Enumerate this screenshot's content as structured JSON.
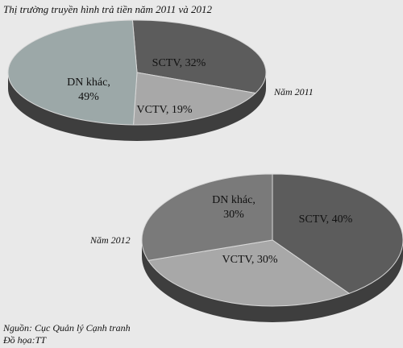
{
  "title": "Thị trường truyền hình trả tiền năm 2011 và 2012",
  "footer": {
    "source": "Nguồn: Cục Quản lý Cạnh tranh",
    "graphic": "Đồ họa:TT"
  },
  "colors": {
    "background": "#e9e9e9",
    "dark": "#5c5c5c",
    "light": "#a8a8a8",
    "dark_side": "#3e3e3e",
    "light_side": "#7c7c7c"
  },
  "chart_data": [
    {
      "type": "pie",
      "year_label": "Năm 2011",
      "slices": [
        {
          "name": "SCTV",
          "value": 32,
          "label": "SCTV, 32%"
        },
        {
          "name": "VCTV",
          "value": 19,
          "label": "VCTV, 19%"
        },
        {
          "name": "DN khác",
          "value": 49,
          "label_lines": [
            "DN khác,",
            "49%"
          ]
        }
      ]
    },
    {
      "type": "pie",
      "year_label": "Năm 2012",
      "slices": [
        {
          "name": "SCTV",
          "value": 40,
          "label": "SCTV, 40%"
        },
        {
          "name": "VCTV",
          "value": 30,
          "label": "VCTV, 30%"
        },
        {
          "name": "DN khác",
          "value": 30,
          "label_lines": [
            "DN khác,",
            "30%"
          ]
        }
      ]
    }
  ]
}
